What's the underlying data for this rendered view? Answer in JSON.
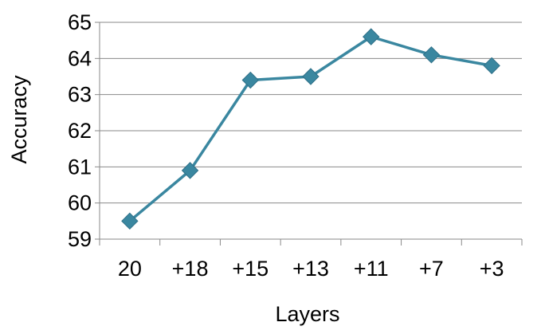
{
  "chart_data": {
    "type": "line",
    "title": "",
    "xlabel": "Layers",
    "ylabel": "Accuracy",
    "categories": [
      "20",
      "+18",
      "+15",
      "+13",
      "+11",
      "+7",
      "+3"
    ],
    "series": [
      {
        "values": [
          59.5,
          60.9,
          63.4,
          63.5,
          64.6,
          64.1,
          63.8
        ],
        "color": "#3a87a0",
        "marker": "diamond"
      }
    ],
    "ylim": [
      59,
      65
    ],
    "yticks": [
      "59",
      "60",
      "61",
      "62",
      "63",
      "64",
      "65"
    ],
    "grid": true,
    "legend": "none"
  }
}
